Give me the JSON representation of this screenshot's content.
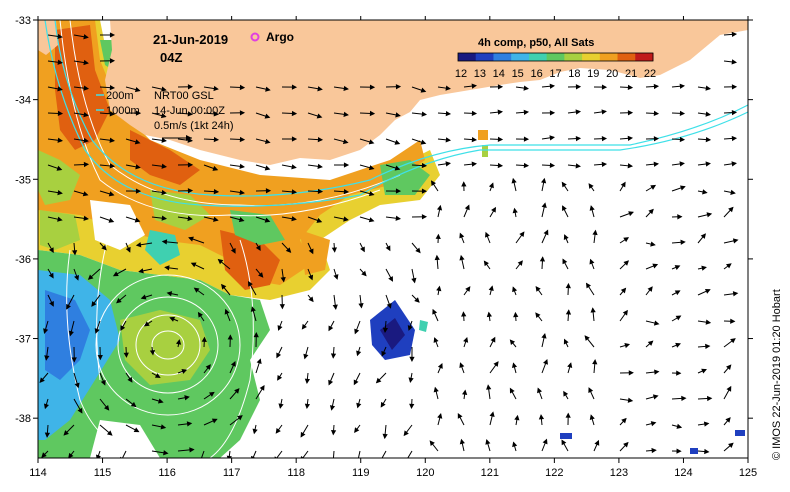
{
  "header": {
    "date": "21-Jun-2019",
    "time": "04Z",
    "argo_label": "Argo"
  },
  "colorbar": {
    "title": "4h comp, p50, All Sats",
    "ticks": [
      "12",
      "13",
      "14",
      "15",
      "16",
      "17",
      "18",
      "19",
      "20",
      "21",
      "22"
    ],
    "colors": [
      "#1a1a80",
      "#1f3fbf",
      "#2f7fe0",
      "#3fb4e8",
      "#3fd0b0",
      "#5fc860",
      "#a8d040",
      "#e8d030",
      "#f0a020",
      "#e06010",
      "#c01a1a"
    ]
  },
  "legend": {
    "contour_200": "200m",
    "contour_1000": "1000m",
    "altimetry": "NRT00 GSL",
    "altimetry_date": "14-Jun 00:00Z",
    "vector_scale": "0.5m/s (1kt 24h)"
  },
  "axes": {
    "x_ticks": [
      "114",
      "115",
      "116",
      "117",
      "118",
      "119",
      "120",
      "121",
      "122",
      "123",
      "124",
      "125"
    ],
    "y_ticks": [
      "-33",
      "-34",
      "-35",
      "-36",
      "-37",
      "-38"
    ],
    "lon_range": [
      114,
      125
    ],
    "lat_range": [
      -38.5,
      -33
    ]
  },
  "colors": {
    "land": "#f9c79a",
    "cyan_contour": "#3fe0e8",
    "white_contour": "#ffffff",
    "argo": "#e040e0"
  },
  "credit": "© IMOS 22-Jun-2019 01:20 Hobart"
}
